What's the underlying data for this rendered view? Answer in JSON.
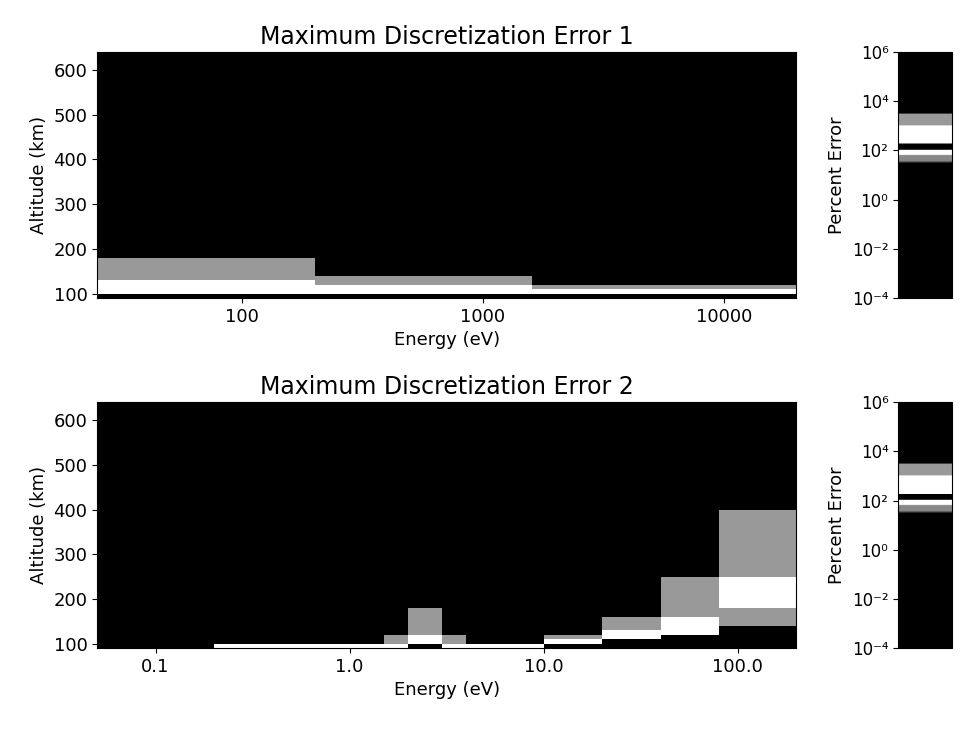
{
  "chart_data": [
    {
      "type": "heatmap",
      "title": "Maximum Discretization Error 1",
      "x_label": "Energy (eV)",
      "y_label": "Altitude (km)",
      "log": "x",
      "xlim": [
        25,
        20000
      ],
      "xticks": [
        100,
        1000,
        10000
      ],
      "ylim": [
        90,
        640
      ],
      "yticks": [
        100,
        200,
        300,
        400,
        500,
        600
      ],
      "x_edges": [
        25,
        50,
        100,
        200,
        400,
        800,
        1600,
        3200,
        6400,
        12800,
        20000
      ],
      "y_edges": [
        90,
        100,
        110,
        120,
        130,
        140,
        150,
        160,
        180,
        200,
        250,
        300,
        400,
        500,
        640
      ],
      "cells": [
        [
          100000,
          100000,
          100000,
          100000,
          100000,
          100000,
          100000,
          100000,
          100000,
          100000
        ],
        [
          500,
          500,
          500,
          500,
          500,
          500,
          300,
          300,
          300,
          300
        ],
        [
          400,
          400,
          400,
          300,
          300,
          300,
          1500,
          1500,
          1500,
          1500
        ],
        [
          300,
          300,
          300,
          2000,
          2000,
          2000,
          1,
          1,
          1,
          1
        ],
        [
          2000,
          2000,
          2000,
          1500,
          1500,
          1500,
          0.001,
          0.001,
          0.001,
          0.001
        ],
        [
          1500,
          1500,
          1500,
          1,
          1,
          1,
          0.001,
          0.001,
          0.001,
          0.001
        ],
        [
          1500,
          1500,
          1500,
          0.001,
          0.001,
          0.001,
          0.001,
          0.001,
          0.001,
          0.001
        ],
        [
          1200,
          1200,
          1200,
          0.001,
          0.001,
          0.001,
          0.001,
          0.001,
          0.001,
          0.001
        ],
        [
          1,
          1,
          1,
          0.001,
          0.001,
          0.001,
          0.001,
          0.001,
          0.001,
          0.001
        ],
        [
          0.001,
          0.001,
          0.001,
          0.001,
          0.001,
          0.001,
          0.001,
          0.001,
          0.001,
          0.001
        ],
        [
          0.001,
          0.001,
          0.001,
          0.001,
          0.001,
          0.001,
          0.001,
          0.001,
          0.001,
          0.001
        ],
        [
          0.001,
          0.001,
          0.001,
          0.001,
          0.001,
          0.001,
          0.001,
          0.001,
          0.001,
          0.001
        ],
        [
          0.001,
          0.001,
          0.001,
          0.001,
          0.001,
          0.001,
          0.001,
          0.001,
          0.001,
          0.001
        ],
        [
          0.001,
          0.001,
          0.001,
          0.001,
          0.001,
          0.001,
          0.001,
          0.001,
          0.001,
          0.001
        ]
      ],
      "colorbar": {
        "label": "Percent Error",
        "range": [
          0.0001,
          1000000
        ],
        "ticks": [
          {
            "value": 0.0001,
            "label": "10⁻⁴"
          },
          {
            "value": 0.01,
            "label": "10⁻²"
          },
          {
            "value": 1,
            "label": "10⁰"
          },
          {
            "value": 100,
            "label": "10²"
          },
          {
            "value": 10000,
            "label": "10⁴"
          },
          {
            "value": 1000000,
            "label": "10⁶"
          }
        ]
      }
    },
    {
      "type": "heatmap",
      "title": "Maximum Discretization Error 2",
      "x_label": "Energy (eV)",
      "y_label": "Altitude (km)",
      "log": "x",
      "xlim": [
        0.05,
        200
      ],
      "xticks": [
        0.1,
        {
          "value": 1,
          "label": "1.0"
        },
        {
          "value": 10,
          "label": "10.0"
        },
        {
          "value": 100,
          "label": "100.0"
        }
      ],
      "ylim": [
        90,
        640
      ],
      "yticks": [
        100,
        200,
        300,
        400,
        500,
        600
      ],
      "x_edges": [
        0.05,
        0.1,
        0.2,
        0.4,
        0.8,
        1.5,
        2,
        2.5,
        3,
        4,
        6,
        10,
        20,
        40,
        80,
        140,
        200
      ],
      "y_edges": [
        90,
        100,
        110,
        120,
        130,
        140,
        150,
        160,
        180,
        200,
        250,
        300,
        400,
        500,
        640
      ],
      "cells": [
        [
          0.001,
          0.001,
          300,
          300,
          300,
          300,
          100000,
          100000,
          300,
          300,
          300,
          100000,
          100000,
          100000,
          100000,
          100000
        ],
        [
          0.001,
          0.001,
          0.001,
          0.001,
          0.001,
          2000,
          300,
          300,
          2000,
          0.001,
          0.001,
          300,
          100000,
          100000,
          100000,
          100000
        ],
        [
          0.001,
          0.001,
          0.001,
          0.001,
          0.001,
          1500,
          300,
          300,
          1500,
          0.001,
          0.001,
          2000,
          300,
          100000,
          100000,
          100000
        ],
        [
          0.001,
          0.001,
          0.001,
          0.001,
          0.001,
          0.001,
          2000,
          2000,
          0.001,
          0.001,
          0.001,
          0.001,
          300,
          300,
          100000,
          100000
        ],
        [
          0.001,
          0.001,
          0.001,
          0.001,
          0.001,
          0.001,
          2000,
          2000,
          0.001,
          0.001,
          0.001,
          0.001,
          2000,
          300,
          100000,
          100000
        ],
        [
          0.001,
          0.001,
          0.001,
          0.001,
          0.001,
          0.001,
          1500,
          1500,
          0.001,
          0.001,
          0.001,
          0.001,
          2000,
          300,
          1500,
          1500
        ],
        [
          0.001,
          0.001,
          0.001,
          0.001,
          0.001,
          0.001,
          1500,
          1500,
          0.001,
          0.001,
          0.001,
          0.001,
          1500,
          300,
          1500,
          1500
        ],
        [
          0.001,
          0.001,
          0.001,
          0.001,
          0.001,
          0.001,
          1200,
          1200,
          0.001,
          0.001,
          0.001,
          0.001,
          0.001,
          2000,
          1500,
          1500
        ],
        [
          0.001,
          0.001,
          0.001,
          0.001,
          0.001,
          0.001,
          0.001,
          0.001,
          0.001,
          0.001,
          0.001,
          0.001,
          0.001,
          2000,
          300,
          300
        ],
        [
          0.001,
          0.001,
          0.001,
          0.001,
          0.001,
          0.001,
          0.001,
          0.001,
          0.001,
          0.001,
          0.001,
          0.001,
          0.001,
          1500,
          300,
          300
        ],
        [
          0.001,
          0.001,
          0.001,
          0.001,
          0.001,
          0.001,
          0.001,
          0.001,
          0.001,
          0.001,
          0.001,
          0.001,
          0.001,
          0.001,
          2000,
          2000
        ],
        [
          0.001,
          0.001,
          0.001,
          0.001,
          0.001,
          0.001,
          0.001,
          0.001,
          0.001,
          0.001,
          0.001,
          0.001,
          0.001,
          0.001,
          1500,
          1500
        ],
        [
          0.001,
          0.001,
          0.001,
          0.001,
          0.001,
          0.001,
          0.001,
          0.001,
          0.001,
          0.001,
          0.001,
          0.001,
          0.001,
          0.001,
          0.001,
          0.001
        ],
        [
          0.001,
          0.001,
          0.001,
          0.001,
          0.001,
          0.001,
          0.001,
          0.001,
          0.001,
          0.001,
          0.001,
          0.001,
          0.001,
          0.001,
          0.001,
          0.001
        ]
      ],
      "colorbar": {
        "label": "Percent Error",
        "range": [
          0.0001,
          1000000
        ],
        "ticks": [
          {
            "value": 0.0001,
            "label": "10⁻⁴"
          },
          {
            "value": 0.01,
            "label": "10⁻²"
          },
          {
            "value": 1,
            "label": "10⁰"
          },
          {
            "value": 100,
            "label": "10²"
          },
          {
            "value": 10000,
            "label": "10⁴"
          },
          {
            "value": 1000000,
            "label": "10⁶"
          }
        ]
      }
    }
  ]
}
